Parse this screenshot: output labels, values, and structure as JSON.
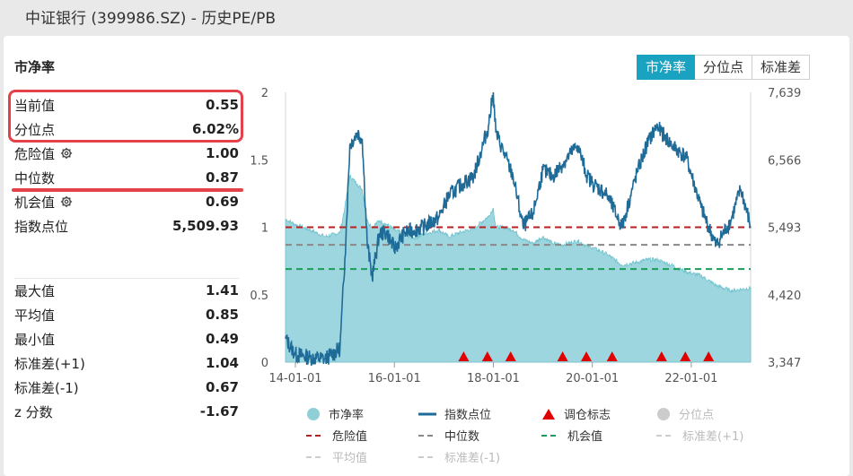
{
  "window_title": "中证银行 (399986.SZ) - 历史PE/PB",
  "panel_title": "市净率",
  "tabs": [
    {
      "label": "市净率",
      "active": true
    },
    {
      "label": "分位点",
      "active": false
    },
    {
      "label": "标准差",
      "active": false
    }
  ],
  "stats_top": [
    {
      "label": "当前值",
      "value": "0.55",
      "gear": false
    },
    {
      "label": "分位点",
      "value": "6.02%",
      "gear": false
    },
    {
      "label": "危险值",
      "value": "1.00",
      "gear": true
    },
    {
      "label": "中位数",
      "value": "0.87",
      "gear": false
    },
    {
      "label": "机会值",
      "value": "0.69",
      "gear": true
    },
    {
      "label": "指数点位",
      "value": "5,509.93",
      "gear": false
    }
  ],
  "stats_bottom": [
    {
      "label": "最大值",
      "value": "1.41"
    },
    {
      "label": "平均值",
      "value": "0.85"
    },
    {
      "label": "最小值",
      "value": "0.49"
    },
    {
      "label": "标准差(+1)",
      "value": "1.04"
    },
    {
      "label": "标准差(-1)",
      "value": "0.67"
    },
    {
      "label": "z 分数",
      "value": "-1.67"
    }
  ],
  "legend": [
    {
      "label": "市净率",
      "symbol": "circle",
      "color": "#8fd0d8",
      "enabled": true
    },
    {
      "label": "指数点位",
      "symbol": "line",
      "color": "#1f6b98",
      "enabled": true
    },
    {
      "label": "调仓标志",
      "symbol": "triangle",
      "color": "#e00000",
      "enabled": true
    },
    {
      "label": "分位点",
      "symbol": "circle",
      "color": "#cccccc",
      "enabled": false
    },
    {
      "label": "危险值",
      "symbol": "dash",
      "color": "#b22222",
      "enabled": true
    },
    {
      "label": "中位数",
      "symbol": "dash",
      "color": "#888888",
      "enabled": true
    },
    {
      "label": "机会值",
      "symbol": "dash",
      "color": "#1e9a5a",
      "enabled": true
    },
    {
      "label": "标准差(+1)",
      "symbol": "dash",
      "color": "#cccccc",
      "enabled": false
    },
    {
      "label": "平均值",
      "symbol": "dash",
      "color": "#cccccc",
      "enabled": false
    },
    {
      "label": "标准差(-1)",
      "symbol": "dash",
      "color": "#cccccc",
      "enabled": false
    }
  ],
  "chart_data": {
    "type": "area",
    "x_ticks": [
      "14-01-01",
      "16-01-01",
      "18-01-01",
      "20-01-01",
      "22-01-01"
    ],
    "x_tick_years": [
      2014.0,
      2016.0,
      2018.0,
      2020.0,
      2022.0
    ],
    "x_range": [
      2013.8,
      2023.2
    ],
    "y_left": {
      "range": [
        0,
        2
      ],
      "ticks": [
        "0",
        "0.5",
        "1",
        "1.5",
        "2"
      ],
      "tick_values": [
        0,
        0.5,
        1,
        1.5,
        2
      ]
    },
    "y_right": {
      "range": [
        3347,
        7639
      ],
      "ticks": [
        "3,347",
        "4,420",
        "5,493",
        "6,566",
        "7,639"
      ],
      "tick_values": [
        3347,
        4420,
        5493,
        6566,
        7639
      ]
    },
    "reference_lines": [
      {
        "name": "危险值",
        "value": 1.0,
        "color": "#b22222"
      },
      {
        "name": "中位数",
        "value": 0.87,
        "color": "#888888"
      },
      {
        "name": "机会值",
        "value": 0.69,
        "color": "#1e9a5a"
      }
    ],
    "series": [
      {
        "name": "市净率",
        "axis": "left",
        "color": "#8fd0d8",
        "x": [
          2013.8,
          2014.0,
          2014.3,
          2014.6,
          2014.9,
          2015.0,
          2015.1,
          2015.25,
          2015.35,
          2015.45,
          2015.55,
          2015.7,
          2015.85,
          2016.0,
          2016.2,
          2016.4,
          2016.6,
          2016.9,
          2017.1,
          2017.4,
          2017.6,
          2017.9,
          2018.0,
          2018.05,
          2018.2,
          2018.4,
          2018.6,
          2018.8,
          2019.0,
          2019.2,
          2019.4,
          2019.7,
          2019.9,
          2020.0,
          2020.3,
          2020.6,
          2020.9,
          2021.1,
          2021.3,
          2021.6,
          2021.9,
          2022.2,
          2022.5,
          2022.8,
          2023.0,
          2023.2
        ],
        "y": [
          1.06,
          1.02,
          0.98,
          0.93,
          0.96,
          1.15,
          1.38,
          1.32,
          1.28,
          1.05,
          1.0,
          1.05,
          1.02,
          0.98,
          0.95,
          0.92,
          0.95,
          0.98,
          0.93,
          0.97,
          0.99,
          1.08,
          1.14,
          1.0,
          1.0,
          0.98,
          0.91,
          0.88,
          0.93,
          0.88,
          0.87,
          0.9,
          0.86,
          0.85,
          0.8,
          0.72,
          0.74,
          0.76,
          0.76,
          0.72,
          0.67,
          0.64,
          0.57,
          0.53,
          0.54,
          0.55
        ]
      },
      {
        "name": "指数点位",
        "axis": "right",
        "color": "#1f6b98",
        "x": [
          2013.8,
          2014.0,
          2014.3,
          2014.6,
          2014.9,
          2015.0,
          2015.1,
          2015.25,
          2015.35,
          2015.45,
          2015.55,
          2015.7,
          2015.85,
          2016.0,
          2016.2,
          2016.4,
          2016.6,
          2016.9,
          2017.1,
          2017.4,
          2017.6,
          2017.9,
          2018.0,
          2018.05,
          2018.2,
          2018.4,
          2018.6,
          2018.8,
          2019.0,
          2019.2,
          2019.4,
          2019.7,
          2019.9,
          2020.0,
          2020.3,
          2020.6,
          2020.9,
          2021.1,
          2021.3,
          2021.6,
          2021.9,
          2022.2,
          2022.5,
          2022.8,
          2023.0,
          2023.2
        ],
        "y": [
          3720,
          3470,
          3420,
          3400,
          3560,
          5000,
          6800,
          7000,
          6900,
          5250,
          4700,
          5400,
          5400,
          5150,
          5400,
          5450,
          5500,
          5650,
          6000,
          6200,
          6300,
          7100,
          7639,
          7000,
          6700,
          6300,
          5500,
          5700,
          6400,
          6300,
          6500,
          6800,
          6300,
          6200,
          6000,
          5500,
          6350,
          6800,
          7100,
          6800,
          6600,
          5800,
          5200,
          5600,
          6100,
          5510
        ]
      }
    ],
    "rebalance_markers_x": [
      2017.4,
      2017.88,
      2018.35,
      2019.4,
      2019.88,
      2020.4,
      2021.4,
      2021.88,
      2022.35
    ]
  }
}
